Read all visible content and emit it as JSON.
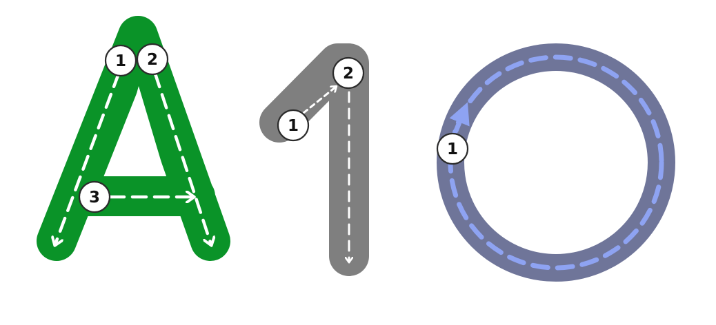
{
  "colors": {
    "background": "#ffffff",
    "letter_a_fill": "#0a9328",
    "digit_one_fill": "#7f7f7f",
    "circle_fill": "#6f7599",
    "circle_guide": "#8ea3f2",
    "guide_white": "#ffffff",
    "badge_fill": "#ffffff",
    "badge_stroke": "#2b2b2b"
  },
  "glyphs": {
    "letter_a": {
      "strokes": [
        {
          "order": "1",
          "icon": "arrow-down-icon"
        },
        {
          "order": "2",
          "icon": "arrow-down-icon"
        },
        {
          "order": "3",
          "icon": "arrow-right-icon"
        }
      ]
    },
    "digit_one": {
      "strokes": [
        {
          "order": "1",
          "icon": "arrow-up-right-icon"
        },
        {
          "order": "2",
          "icon": "arrow-down-icon"
        }
      ]
    },
    "circle_o": {
      "strokes": [
        {
          "order": "1",
          "icon": "arrow-up-icon"
        }
      ]
    }
  }
}
